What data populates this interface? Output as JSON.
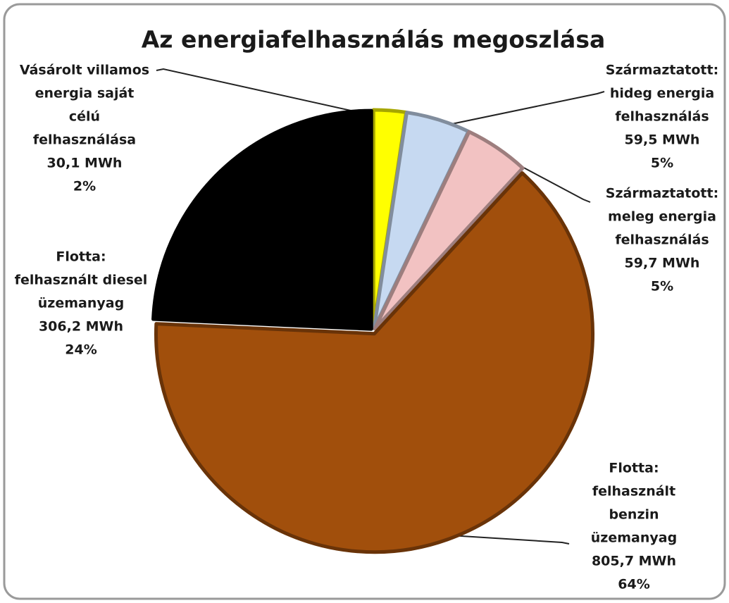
{
  "chart_data": {
    "type": "pie",
    "title": "Az energiafelhasználás megoszlása",
    "categories": [
      [
        "Vásárolt villamos",
        "energia saját",
        "célú",
        "felhasználása"
      ],
      [
        "Származtatott:",
        "hideg energia",
        "felhasználás"
      ],
      [
        "Származtatott:",
        "meleg energia",
        "felhasználás"
      ],
      [
        "Flotta:",
        "felhasznált",
        "benzin",
        "üzemanyag"
      ],
      [
        "Flotta:",
        "felhasznált diesel",
        "üzemanyag"
      ]
    ],
    "values": [
      30.1,
      59.5,
      59.7,
      805.7,
      306.2
    ],
    "value_labels": [
      "30,1 MWh",
      "59,5 MWh",
      "59,7 MWh",
      "805,7 MWh",
      "306,2 MWh"
    ],
    "percent_labels": [
      "2%",
      "5%",
      "5%",
      "64%",
      "24%"
    ],
    "colors": [
      "#ffff00",
      "#c6d9f1",
      "#f2c2c2",
      "#a14f0c",
      "#000000"
    ]
  }
}
